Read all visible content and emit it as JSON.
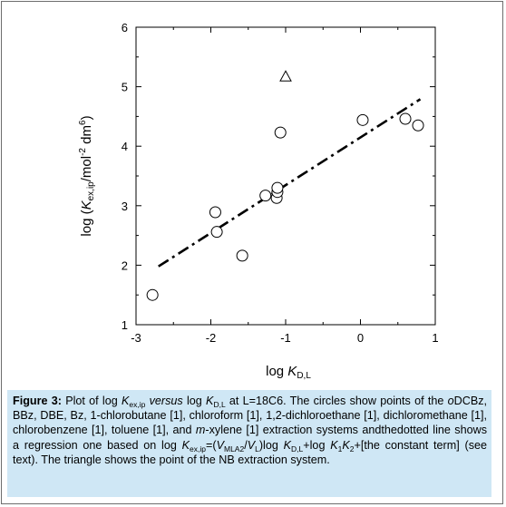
{
  "chart_data": {
    "type": "scatter",
    "xlim": [
      -3,
      1
    ],
    "ylim": [
      1,
      6
    ],
    "x_ticks": [
      "-3",
      "-2",
      "-1",
      "0",
      "1"
    ],
    "y_ticks": [
      "1",
      "2",
      "3",
      "4",
      "5",
      "6"
    ],
    "xlabel": {
      "prefix": "log ",
      "var": "K",
      "sub": "D,L"
    },
    "ylabel": {
      "prefix": "log (",
      "var": "K",
      "sub": "ex,ip",
      "mid": "/mol",
      "sup1": "-2",
      "mid2": " dm",
      "sup2": "6",
      "suffix": ")"
    },
    "series": [
      {
        "marker": "circle",
        "points": [
          {
            "x": -2.78,
            "y": 1.5
          },
          {
            "x": -1.94,
            "y": 2.89
          },
          {
            "x": -1.92,
            "y": 2.56
          },
          {
            "x": -1.58,
            "y": 2.16
          },
          {
            "x": -1.27,
            "y": 3.17
          },
          {
            "x": -1.12,
            "y": 3.13
          },
          {
            "x": -1.11,
            "y": 3.23
          },
          {
            "x": -1.11,
            "y": 3.3
          },
          {
            "x": -1.07,
            "y": 4.23
          },
          {
            "x": 0.03,
            "y": 4.44
          },
          {
            "x": 0.6,
            "y": 4.46
          },
          {
            "x": 0.77,
            "y": 4.35
          }
        ]
      },
      {
        "marker": "triangle",
        "points": [
          {
            "x": -1.0,
            "y": 5.18
          }
        ]
      }
    ],
    "regression": {
      "style": "dash-dot",
      "x1": -2.7,
      "y1": 1.98,
      "x2": 0.8,
      "y2": 4.79
    }
  },
  "caption": {
    "label": "Figure 3:",
    "t1": " Plot of log ",
    "k1": "K",
    "k1sub": "ex,ip",
    "t2": " ",
    "versus": "versus",
    "t3": " log ",
    "k2": "K",
    "k2sub": "D,L",
    "t4": " at L=18C6.  The circles show points of the ",
    "o": "o",
    "t5": "DCBz, BBz, DBE, Bz, 1-chlorobutane [1], chloroform [1], 1,2-dichloroethane [1], dichloromethane [1], chlorobenzene [1], toluene [1], and ",
    "m": "m",
    "t6": "-xylene [1] extraction systems andthedotted line shows a regression one based on log ",
    "k3": "K",
    "k3sub": "ex,ip",
    "t7": "=(",
    "v1": "V",
    "v1sub": "MLA2",
    "t8": "/",
    "v2": "V",
    "v2sub": "L",
    "t9": ")log ",
    "k4": "K",
    "k4sub": "D,L",
    "t10": "+log ",
    "k5": "K",
    "k5sub": "1",
    "k6": "K",
    "k6sub": "2",
    "t11": "+[the constant term] (see text). The triangle shows the point of the NB extraction system."
  }
}
